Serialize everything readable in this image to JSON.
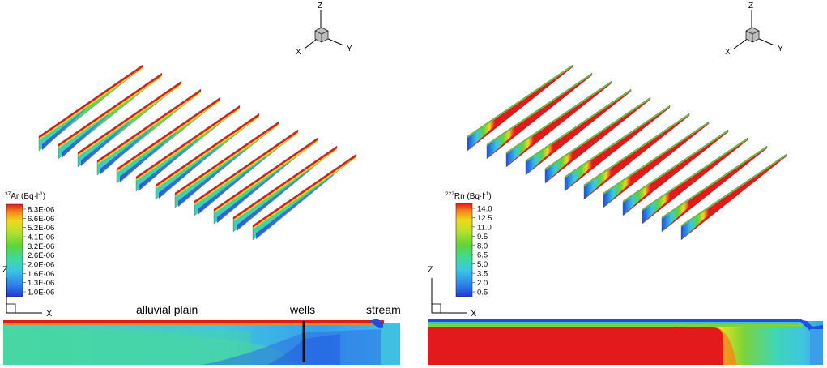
{
  "left_panel": {
    "axes3d": {
      "z": "Z",
      "x": "X",
      "y": "Y"
    },
    "legend": {
      "title_sup": "37",
      "title_text": "Ar (Bq·l",
      "title_exp": "-1",
      "title_close": ")",
      "ticks": [
        "8.3E-06",
        "6.6E-06",
        "5.2E-06",
        "4.1E-06",
        "3.2E-06",
        "2.6E-06",
        "2.0E-06",
        "1.6E-06",
        "1.3E-06",
        "1.0E-06"
      ]
    },
    "axes2d": {
      "z": "Z",
      "x": "X"
    },
    "annotations": {
      "alluvial_plain": "alluvial plain",
      "wells": "wells",
      "stream": "stream"
    }
  },
  "right_panel": {
    "axes3d": {
      "z": "Z",
      "x": "X",
      "y": "Y"
    },
    "legend": {
      "title_sup": "222",
      "title_text": "Rn (Bq·l",
      "title_exp": "-1",
      "title_close": ")",
      "ticks": [
        "14.0",
        "12.5",
        "11.0",
        "9.5",
        "8.0",
        "6.5",
        "5.0",
        "3.5",
        "2.0",
        "0.5"
      ]
    },
    "axes2d": {
      "z": "Z",
      "x": "X"
    }
  },
  "colors": {
    "red": "#e31a1c",
    "orange": "#f98a1d",
    "yellow": "#e8e21a",
    "green": "#5fd33a",
    "cyan": "#39d8c8",
    "lightblue": "#3aa3e8",
    "blue": "#1e4fe0"
  }
}
